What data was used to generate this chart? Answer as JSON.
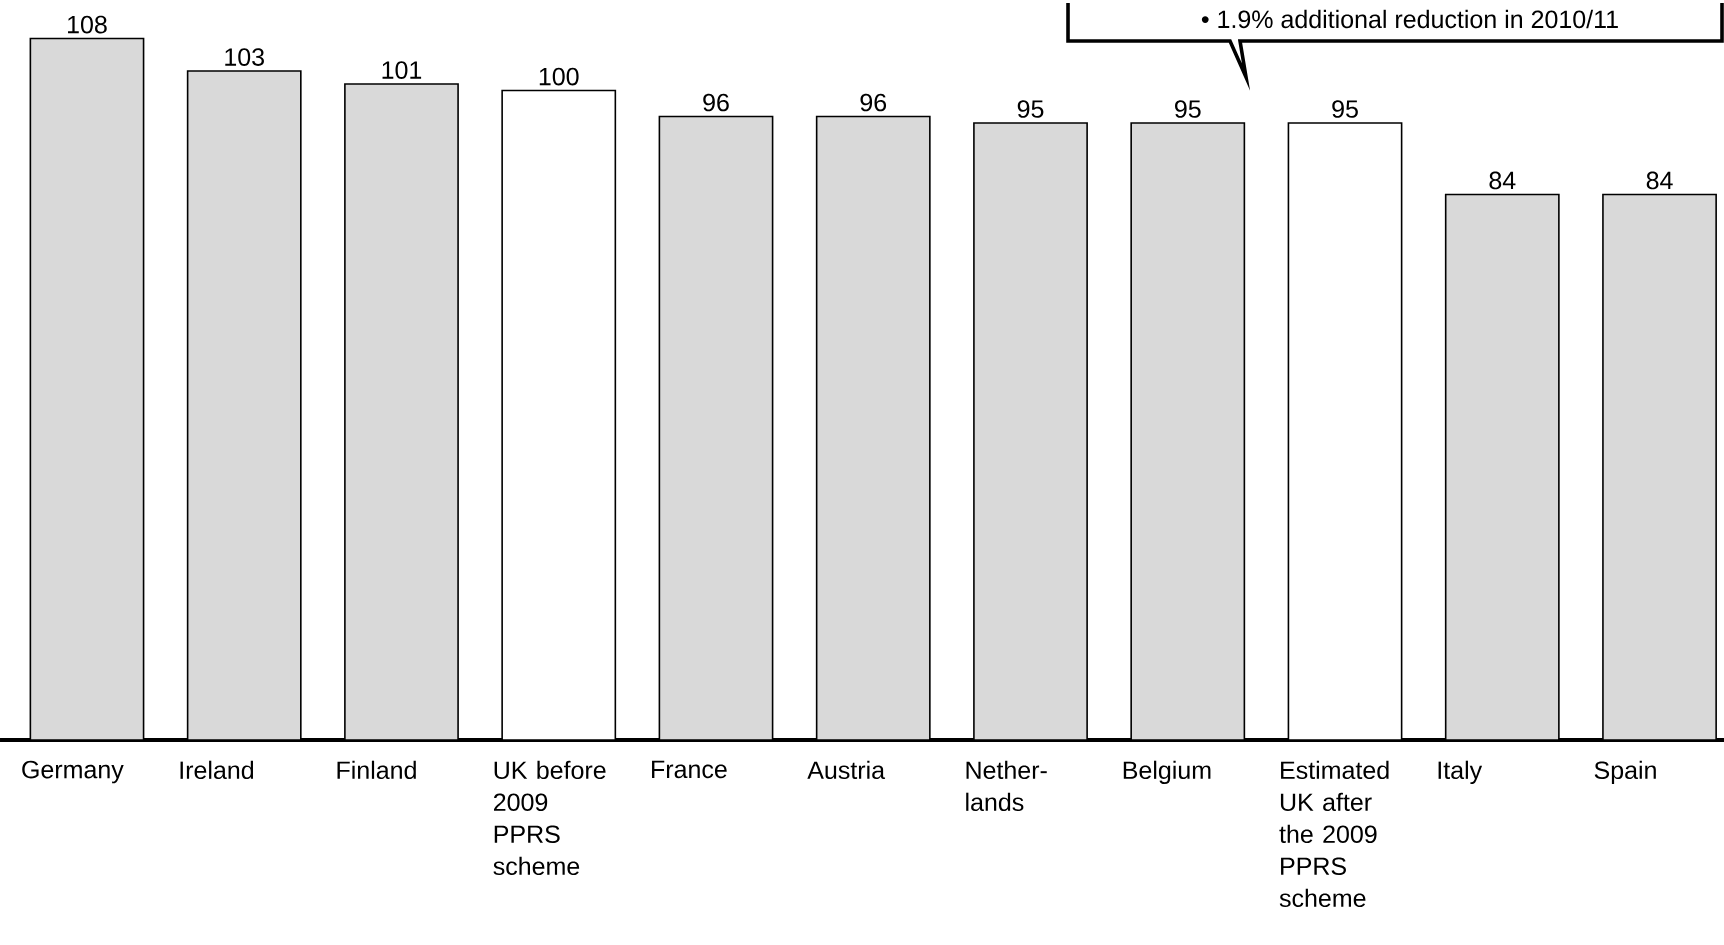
{
  "chart_data": {
    "type": "bar",
    "categories": [
      "Germany",
      "Ireland",
      "Finland",
      "UK before 2009 PPRS scheme",
      "France",
      "Austria",
      "Nether-lands",
      "Belgium",
      "Estimated UK after the 2009 PPRS scheme",
      "Italy",
      "Spain"
    ],
    "values": [
      108,
      103,
      101,
      100,
      96,
      96,
      95,
      95,
      95,
      84,
      84
    ],
    "colors": [
      "#d9d9d9",
      "#d9d9d9",
      "#d9d9d9",
      "#ffffff",
      "#d9d9d9",
      "#d9d9d9",
      "#d9d9d9",
      "#d9d9d9",
      "#ffffff",
      "#d9d9d9",
      "#d9d9d9"
    ],
    "data_labels": true,
    "annotations": [
      "• 1.9% additional reduction in 2010/11"
    ]
  }
}
